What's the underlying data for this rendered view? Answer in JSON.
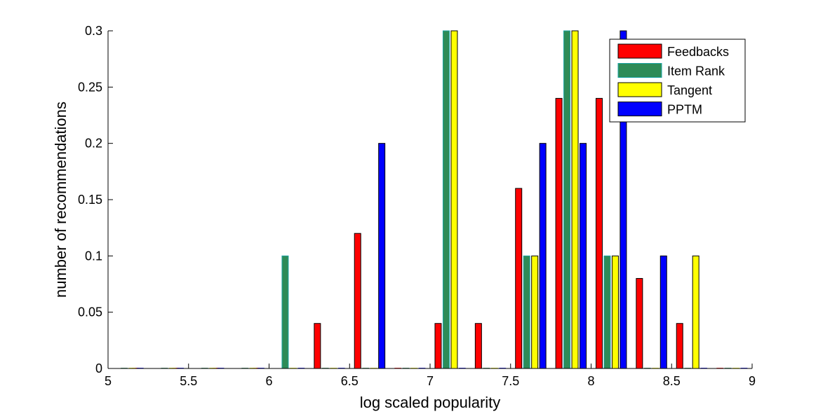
{
  "chart_data": {
    "type": "bar",
    "xlabel": "log scaled popularity",
    "ylabel": "number of recommendations",
    "xlim": [
      5,
      9
    ],
    "ylim": [
      0,
      0.3
    ],
    "x_ticks": [
      "5",
      "5.5",
      "6",
      "6.5",
      "7",
      "7.5",
      "8",
      "8.5",
      "9"
    ],
    "y_ticks": [
      "0",
      "0.05",
      "0.1",
      "0.15",
      "0.2",
      "0.25",
      "0.3"
    ],
    "grid": false,
    "legend_position": "top-right",
    "series": [
      {
        "name": "Feedbacks",
        "color": "#ff0000",
        "points": [
          [
            5.17,
            0
          ],
          [
            5.42,
            0
          ],
          [
            5.67,
            0
          ],
          [
            5.92,
            0
          ],
          [
            6.3,
            0.04
          ],
          [
            6.55,
            0.12
          ],
          [
            6.8,
            0
          ],
          [
            7.05,
            0.04
          ],
          [
            7.3,
            0.04
          ],
          [
            7.55,
            0.16
          ],
          [
            7.8,
            0.24
          ],
          [
            8.05,
            0.24
          ],
          [
            8.3,
            0.08
          ],
          [
            8.55,
            0.04
          ],
          [
            8.8,
            0
          ]
        ]
      },
      {
        "name": "Item Rank",
        "color": "#2e8b57",
        "points": [
          [
            5.1,
            0
          ],
          [
            5.35,
            0
          ],
          [
            5.6,
            0
          ],
          [
            5.85,
            0
          ],
          [
            6.1,
            0.1
          ],
          [
            6.35,
            0
          ],
          [
            6.6,
            0
          ],
          [
            6.85,
            0
          ],
          [
            7.1,
            0.3
          ],
          [
            7.35,
            0
          ],
          [
            7.6,
            0.1
          ],
          [
            7.85,
            0.3
          ],
          [
            8.1,
            0.1
          ],
          [
            8.35,
            0
          ],
          [
            8.6,
            0
          ],
          [
            8.85,
            0
          ]
        ]
      },
      {
        "name": "Tangent",
        "color": "#ffff00",
        "points": [
          [
            5.15,
            0
          ],
          [
            5.4,
            0
          ],
          [
            5.65,
            0
          ],
          [
            5.9,
            0
          ],
          [
            6.15,
            0
          ],
          [
            6.4,
            0
          ],
          [
            6.65,
            0
          ],
          [
            6.9,
            0
          ],
          [
            7.15,
            0.3
          ],
          [
            7.4,
            0
          ],
          [
            7.65,
            0.1
          ],
          [
            7.9,
            0.3
          ],
          [
            8.15,
            0.1
          ],
          [
            8.4,
            0
          ],
          [
            8.65,
            0.1
          ],
          [
            8.9,
            0
          ]
        ]
      },
      {
        "name": "PPTM",
        "color": "#0000ff",
        "points": [
          [
            5.2,
            0
          ],
          [
            5.45,
            0
          ],
          [
            5.7,
            0
          ],
          [
            5.95,
            0
          ],
          [
            6.2,
            0
          ],
          [
            6.45,
            0
          ],
          [
            6.7,
            0.2
          ],
          [
            6.95,
            0
          ],
          [
            7.2,
            0
          ],
          [
            7.45,
            0
          ],
          [
            7.7,
            0.2
          ],
          [
            7.95,
            0.2
          ],
          [
            8.2,
            0.3
          ],
          [
            8.45,
            0.1
          ],
          [
            8.7,
            0
          ],
          [
            8.95,
            0
          ]
        ]
      }
    ]
  }
}
